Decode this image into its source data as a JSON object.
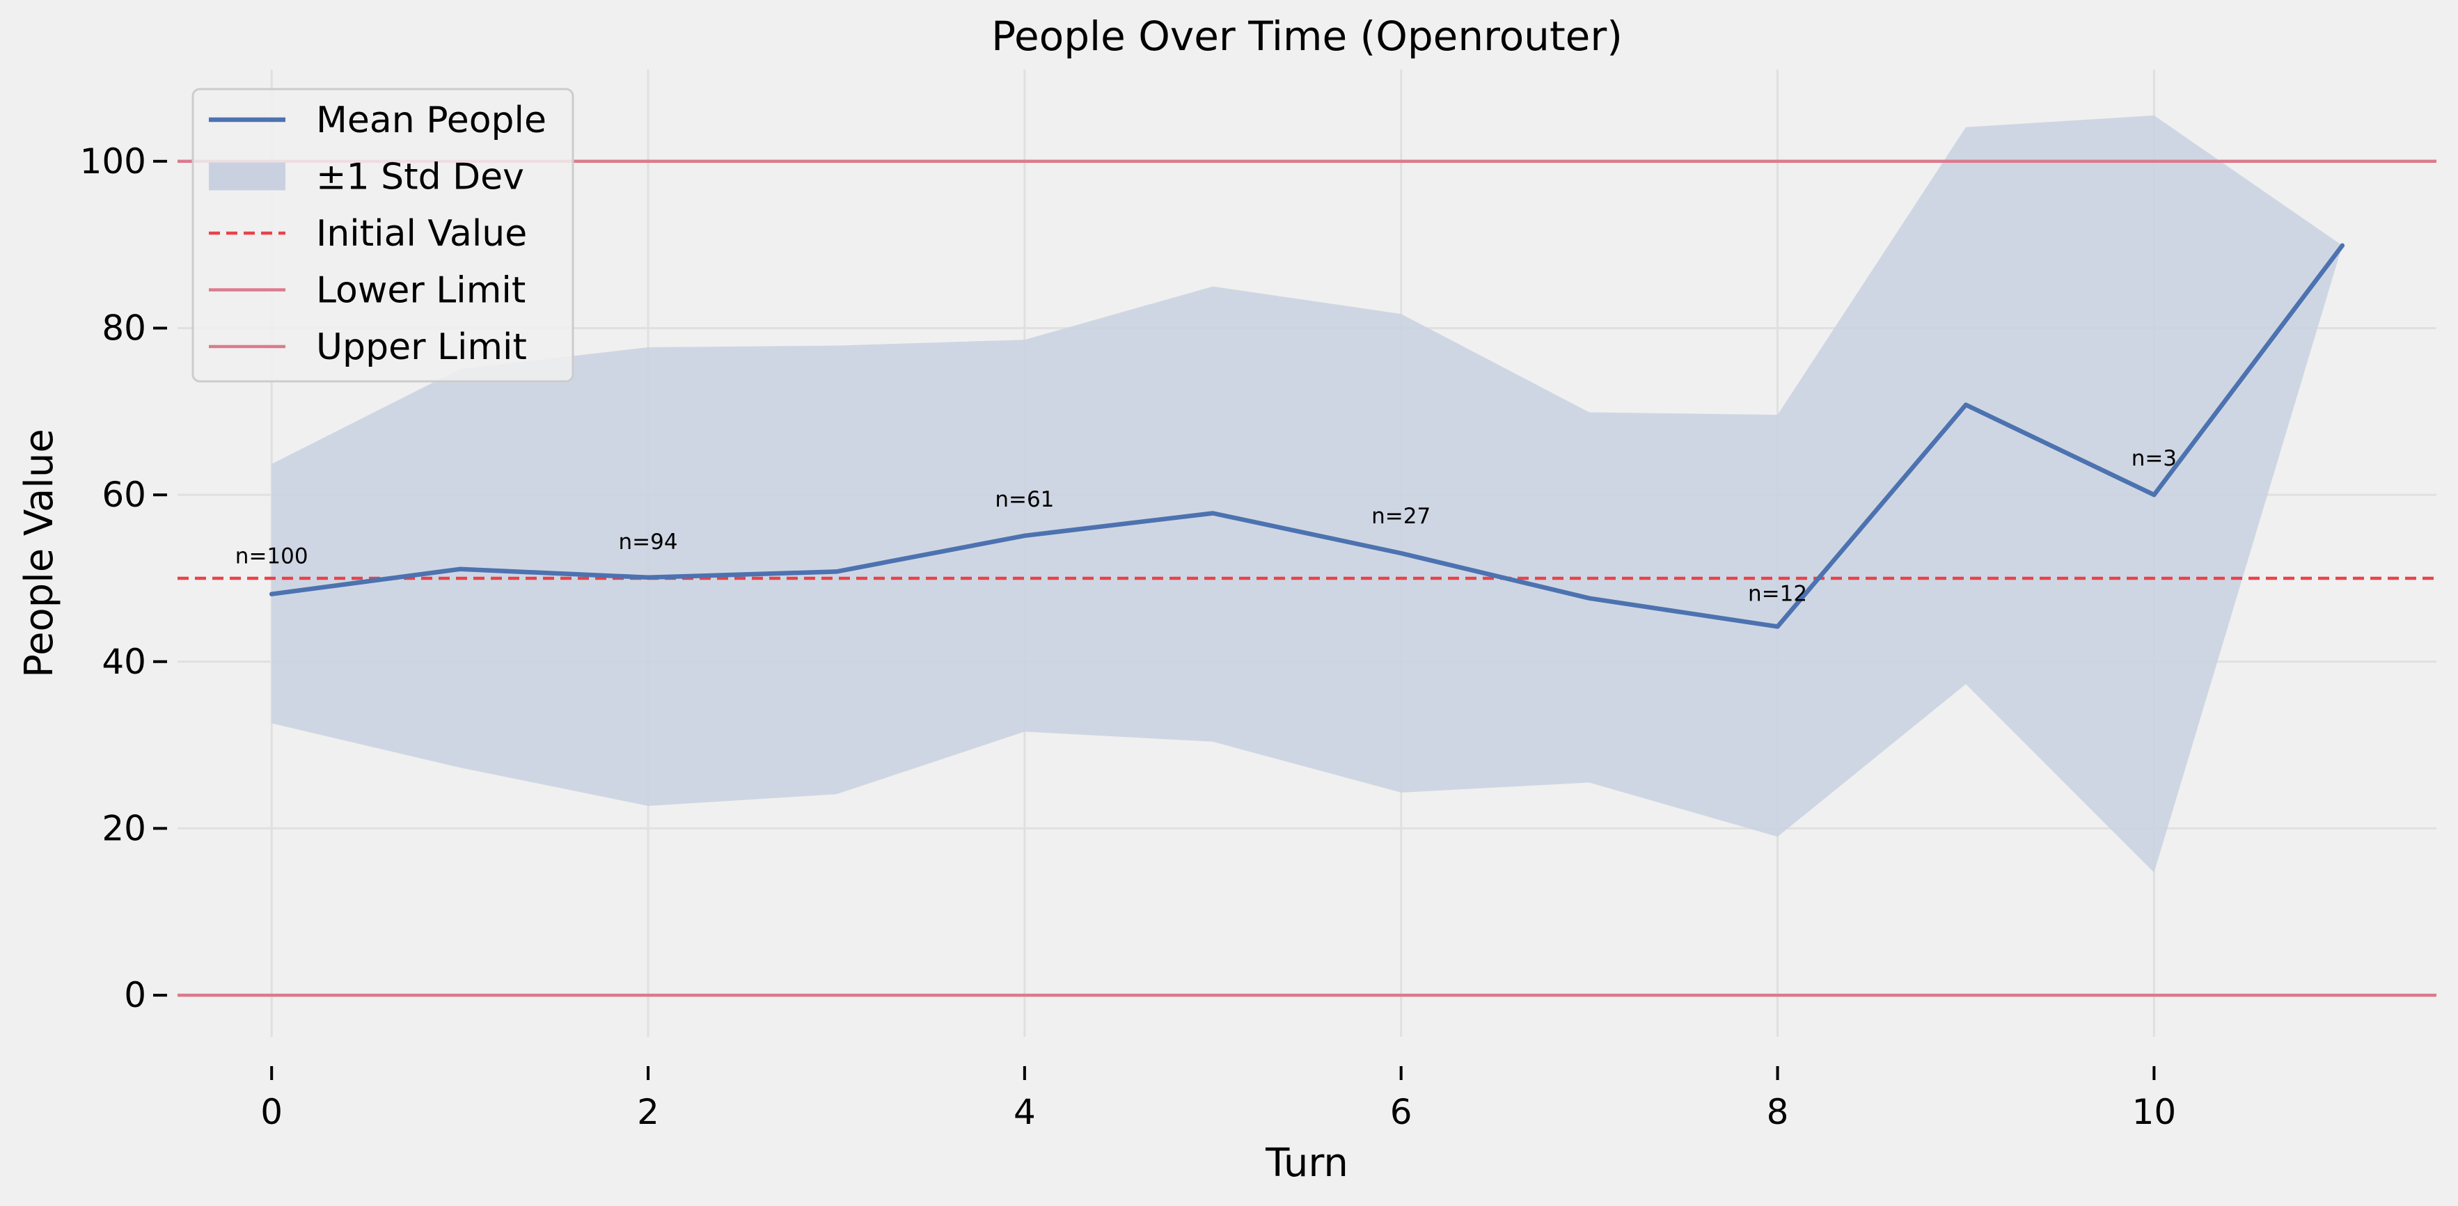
{
  "chart_data": {
    "type": "line",
    "title": "People Over Time (Openrouter)",
    "xlabel": "Turn",
    "ylabel": "People Value",
    "xlim": [
      -0.5,
      11.5
    ],
    "ylim": [
      -5,
      111
    ],
    "xticks": [
      0,
      2,
      4,
      6,
      8,
      10
    ],
    "yticks": [
      0,
      20,
      40,
      60,
      80,
      100
    ],
    "grid": true,
    "legend_position": "top-left",
    "x": [
      0,
      1,
      2,
      3,
      4,
      5,
      6,
      7,
      8,
      9,
      10,
      11
    ],
    "series": [
      {
        "name": "Mean People",
        "type": "line",
        "color": "#4c72b0",
        "values": [
          48.1,
          51.1,
          50.1,
          50.8,
          55.1,
          57.8,
          53.0,
          47.6,
          44.2,
          70.8,
          60.0,
          89.9
        ]
      },
      {
        "name": "±1 Std Dev",
        "type": "band",
        "color": "#c9d1e1",
        "lower": [
          32.6,
          27.3,
          22.7,
          24.1,
          31.6,
          30.4,
          24.3,
          25.5,
          19.0,
          37.3,
          14.7,
          89.9
        ],
        "upper": [
          63.7,
          75.1,
          77.7,
          77.9,
          78.6,
          85.0,
          81.7,
          69.9,
          69.6,
          104.1,
          105.5,
          89.9
        ]
      },
      {
        "name": "Initial Value",
        "type": "hline",
        "style": "dashed",
        "color": "#e8434a",
        "value": 50
      },
      {
        "name": "Lower Limit",
        "type": "hline",
        "style": "solid",
        "color": "#dc7a8d",
        "value": 0
      },
      {
        "name": "Upper Limit",
        "type": "hline",
        "style": "solid",
        "color": "#dc7a8d",
        "value": 100
      }
    ],
    "annotations": [
      {
        "text": "n=100",
        "x": 0,
        "y": 51.8
      },
      {
        "text": "n=94",
        "x": 2,
        "y": 53.5
      },
      {
        "text": "n=61",
        "x": 4,
        "y": 58.6
      },
      {
        "text": "n=27",
        "x": 6,
        "y": 56.6
      },
      {
        "text": "n=12",
        "x": 8,
        "y": 47.3
      },
      {
        "text": "n=3",
        "x": 10,
        "y": 63.5
      }
    ]
  }
}
